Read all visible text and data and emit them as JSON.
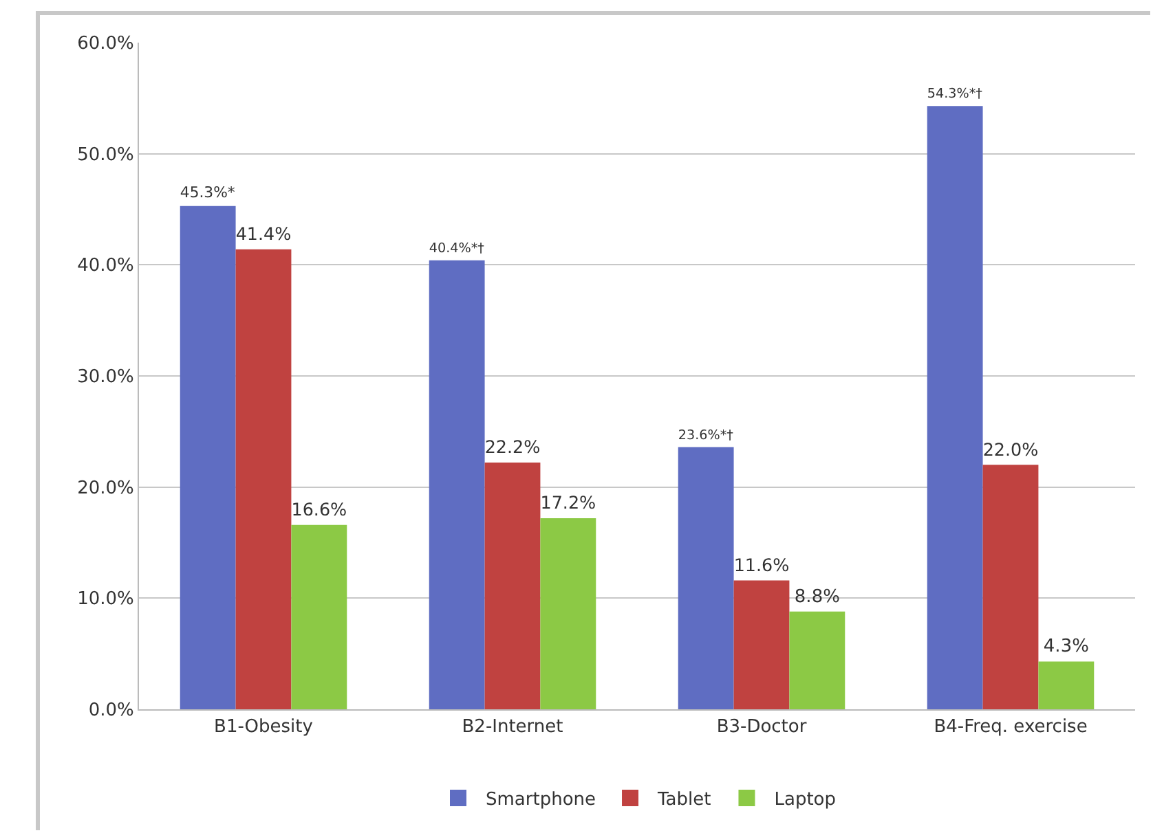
{
  "chart_data": {
    "type": "bar",
    "categories": [
      "B1-Obesity",
      "B2-Internet",
      "B3-Doctor",
      "B4-Freq. exercise"
    ],
    "series": [
      {
        "name": "Smartphone",
        "color": "#5f6dc2",
        "values": [
          45.3,
          40.4,
          23.6,
          54.3
        ],
        "value_labels": [
          "45.3%*",
          "40.4%*†",
          "23.6%*†",
          "54.3%*†"
        ]
      },
      {
        "name": "Tablet",
        "color": "#c04240",
        "values": [
          41.4,
          22.2,
          11.6,
          22.0
        ],
        "value_labels": [
          "41.4%",
          "22.2%",
          "11.6%",
          "22.0%"
        ]
      },
      {
        "name": "Laptop",
        "color": "#8cc945",
        "values": [
          16.6,
          17.2,
          8.8,
          4.3
        ],
        "value_labels": [
          "16.6%",
          "17.2%",
          "8.8%",
          "4.3%"
        ]
      }
    ],
    "ylim": [
      0,
      60
    ],
    "yticks": [
      {
        "value": 0,
        "label": "0.0%"
      },
      {
        "value": 10,
        "label": "10.0%"
      },
      {
        "value": 20,
        "label": "20.0%"
      },
      {
        "value": 30,
        "label": "30.0%"
      },
      {
        "value": 40,
        "label": "40.0%"
      },
      {
        "value": 50,
        "label": "50.0%"
      },
      {
        "value": 60,
        "label": "60.0%"
      }
    ],
    "grid": "y",
    "legend": "bottom"
  }
}
